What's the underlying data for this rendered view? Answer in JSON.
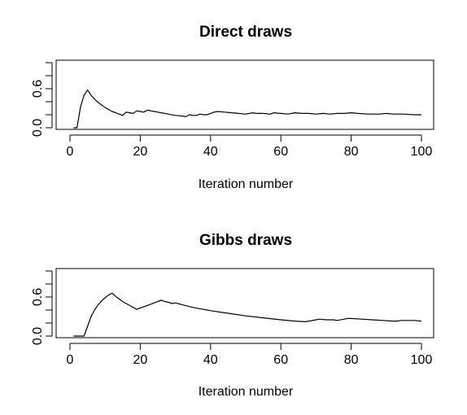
{
  "chart_data": [
    {
      "type": "line",
      "title": "Direct draws",
      "xlabel": "Iteration number",
      "ylabel": "",
      "xlim": [
        0,
        100
      ],
      "ylim": [
        0,
        1
      ],
      "x_ticks": [
        0,
        20,
        40,
        60,
        80,
        100
      ],
      "y_ticks": [
        0.0,
        0.2,
        0.4,
        0.6,
        0.8,
        1.0
      ],
      "y_tick_labels": [
        "0.0",
        "",
        "",
        "0.6",
        "",
        ""
      ],
      "grid": false,
      "series": [
        {
          "points": [
            [
              1,
              0.0
            ],
            [
              2,
              0.0
            ],
            [
              3,
              0.32
            ],
            [
              4,
              0.5
            ],
            [
              5,
              0.58
            ],
            [
              6,
              0.5
            ],
            [
              7,
              0.44
            ],
            [
              8,
              0.39
            ],
            [
              9,
              0.35
            ],
            [
              10,
              0.31
            ],
            [
              11,
              0.28
            ],
            [
              12,
              0.25
            ],
            [
              13,
              0.23
            ],
            [
              14,
              0.21
            ],
            [
              15,
              0.19
            ],
            [
              16,
              0.24
            ],
            [
              17,
              0.23
            ],
            [
              18,
              0.22
            ],
            [
              19,
              0.26
            ],
            [
              20,
              0.25
            ],
            [
              21,
              0.24
            ],
            [
              22,
              0.27
            ],
            [
              23,
              0.26
            ],
            [
              24,
              0.25
            ],
            [
              25,
              0.24
            ],
            [
              26,
              0.23
            ],
            [
              28,
              0.21
            ],
            [
              30,
              0.19
            ],
            [
              32,
              0.18
            ],
            [
              33,
              0.17
            ],
            [
              34,
              0.2
            ],
            [
              35,
              0.19
            ],
            [
              36,
              0.19
            ],
            [
              37,
              0.21
            ],
            [
              38,
              0.2
            ],
            [
              39,
              0.2
            ],
            [
              40,
              0.22
            ],
            [
              41,
              0.24
            ],
            [
              42,
              0.25
            ],
            [
              44,
              0.24
            ],
            [
              46,
              0.23
            ],
            [
              48,
              0.22
            ],
            [
              50,
              0.21
            ],
            [
              52,
              0.23
            ],
            [
              53,
              0.22
            ],
            [
              55,
              0.22
            ],
            [
              57,
              0.21
            ],
            [
              58,
              0.23
            ],
            [
              60,
              0.22
            ],
            [
              62,
              0.21
            ],
            [
              64,
              0.23
            ],
            [
              66,
              0.22
            ],
            [
              68,
              0.22
            ],
            [
              70,
              0.21
            ],
            [
              72,
              0.22
            ],
            [
              74,
              0.21
            ],
            [
              76,
              0.22
            ],
            [
              78,
              0.22
            ],
            [
              80,
              0.23
            ],
            [
              82,
              0.22
            ],
            [
              85,
              0.21
            ],
            [
              88,
              0.21
            ],
            [
              90,
              0.22
            ],
            [
              92,
              0.21
            ],
            [
              95,
              0.21
            ],
            [
              98,
              0.2
            ],
            [
              100,
              0.2
            ]
          ]
        }
      ]
    },
    {
      "type": "line",
      "title": "Gibbs draws",
      "xlabel": "Iteration number",
      "ylabel": "",
      "xlim": [
        0,
        100
      ],
      "ylim": [
        0,
        1
      ],
      "x_ticks": [
        0,
        20,
        40,
        60,
        80,
        100
      ],
      "y_ticks": [
        0.0,
        0.2,
        0.4,
        0.6,
        0.8,
        1.0
      ],
      "y_tick_labels": [
        "0.0",
        "",
        "",
        "0.6",
        "",
        ""
      ],
      "grid": false,
      "series": [
        {
          "points": [
            [
              1,
              0.0
            ],
            [
              2,
              0.0
            ],
            [
              3,
              0.0
            ],
            [
              4,
              0.0
            ],
            [
              5,
              0.15
            ],
            [
              6,
              0.3
            ],
            [
              7,
              0.4
            ],
            [
              8,
              0.48
            ],
            [
              9,
              0.54
            ],
            [
              10,
              0.59
            ],
            [
              11,
              0.63
            ],
            [
              12,
              0.66
            ],
            [
              13,
              0.61
            ],
            [
              14,
              0.57
            ],
            [
              15,
              0.53
            ],
            [
              16,
              0.5
            ],
            [
              17,
              0.47
            ],
            [
              18,
              0.44
            ],
            [
              19,
              0.41
            ],
            [
              20,
              0.43
            ],
            [
              22,
              0.47
            ],
            [
              24,
              0.51
            ],
            [
              26,
              0.55
            ],
            [
              27,
              0.53
            ],
            [
              28,
              0.52
            ],
            [
              29,
              0.5
            ],
            [
              30,
              0.51
            ],
            [
              32,
              0.48
            ],
            [
              35,
              0.44
            ],
            [
              38,
              0.41
            ],
            [
              40,
              0.39
            ],
            [
              45,
              0.35
            ],
            [
              50,
              0.31
            ],
            [
              55,
              0.28
            ],
            [
              60,
              0.25
            ],
            [
              64,
              0.23
            ],
            [
              67,
              0.22
            ],
            [
              68,
              0.23
            ],
            [
              70,
              0.25
            ],
            [
              71,
              0.26
            ],
            [
              73,
              0.25
            ],
            [
              75,
              0.25
            ],
            [
              76,
              0.24
            ],
            [
              78,
              0.26
            ],
            [
              79,
              0.27
            ],
            [
              80,
              0.27
            ],
            [
              83,
              0.26
            ],
            [
              86,
              0.25
            ],
            [
              89,
              0.24
            ],
            [
              92,
              0.23
            ],
            [
              93,
              0.23
            ],
            [
              94,
              0.24
            ],
            [
              96,
              0.24
            ],
            [
              98,
              0.24
            ],
            [
              100,
              0.23
            ]
          ]
        }
      ]
    }
  ]
}
